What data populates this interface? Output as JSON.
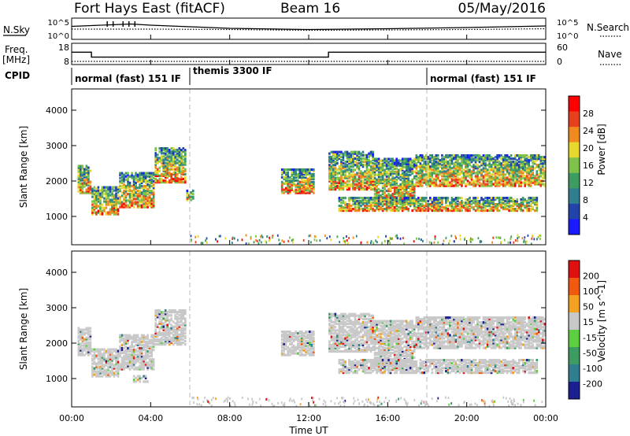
{
  "header": {
    "title": "Fort Hays East (fitACF)",
    "beam": "Beam 16",
    "date": "05/May/2016"
  },
  "noise_panel": {
    "left_label": "N.Sky",
    "left_ticks": [
      "10^5",
      "10^0"
    ],
    "right_ticks": [
      "10^5",
      "10^0"
    ],
    "right_label": "N.Search"
  },
  "freq_panel": {
    "left_label_line1": "Freq.",
    "left_label_line2": "[MHz]",
    "left_ticks": [
      "18",
      "8"
    ],
    "right_ticks": [
      "60",
      "0"
    ],
    "right_label": "Nave"
  },
  "cpid": {
    "label": "CPID",
    "modes": [
      {
        "text": "normal (fast) 151 IF",
        "start_hour": 0
      },
      {
        "text": "themis 3300 IF",
        "start_hour": 6
      },
      {
        "text": "normal (fast) 151 IF",
        "start_hour": 18
      }
    ]
  },
  "x_axis": {
    "label": "Time UT",
    "ticks": [
      "00:00",
      "04:00",
      "08:00",
      "12:00",
      "16:00",
      "20:00",
      "00:00"
    ]
  },
  "colors": {
    "power_scale": [
      "#1a1aff",
      "#2244aa",
      "#2f7f90",
      "#3c9c62",
      "#7fc24a",
      "#e8d82e",
      "#f08a1e",
      "#e8401c",
      "#ff0000"
    ],
    "velocity_scale": [
      "#e01010",
      "#f05a10",
      "#f4a020",
      "#c8c8c8",
      "#5cd040",
      "#3c9c62",
      "#2f7f90",
      "#1a2090"
    ],
    "ground_scatter": "#c8c8c8"
  },
  "chart_data": [
    {
      "type": "line",
      "panel": "noise",
      "x_range_hours": [
        0,
        24
      ],
      "series": [
        {
          "name": "N.Sky",
          "x": [
            0,
            1,
            2,
            3,
            4,
            6,
            8,
            12,
            16,
            20,
            24
          ],
          "y_log10": [
            3.3,
            3.5,
            3.7,
            3.9,
            3.6,
            3.2,
            2.8,
            2.5,
            2.7,
            3.0,
            3.4
          ]
        },
        {
          "name": "N.Search",
          "x": [
            0,
            4,
            8,
            12,
            16,
            20,
            24
          ],
          "y_log10": [
            2.6,
            2.6,
            2.5,
            2.3,
            2.4,
            2.5,
            2.7
          ]
        }
      ]
    },
    {
      "type": "line",
      "panel": "freq",
      "x_range_hours": [
        0,
        24
      ],
      "series": [
        {
          "name": "Freq.",
          "x": [
            0,
            1,
            1,
            13,
            13,
            24
          ],
          "y": [
            14.5,
            14.5,
            11,
            11,
            14.5,
            14.5
          ]
        },
        {
          "name": "Nave",
          "x": [
            0,
            1,
            1,
            24
          ],
          "y": [
            8,
            8,
            8,
            8
          ]
        }
      ]
    },
    {
      "type": "heatmap",
      "panel": "power",
      "title": "Power",
      "ylabel": "Slant Range [km]",
      "xlabel": "Time UT",
      "colorbar_label": "Power [dB]",
      "colorbar_ticks": [
        "4",
        "8",
        "12",
        "16",
        "20",
        "24",
        "28"
      ],
      "ylim": [
        200,
        4600
      ],
      "yticks": [
        "1000",
        "2000",
        "3000",
        "4000"
      ],
      "regions": [
        {
          "t0": 0.3,
          "t1": 1.0,
          "r0": 1700,
          "r1": 2500
        },
        {
          "t0": 1.0,
          "t1": 2.4,
          "r0": 1100,
          "r1": 1900
        },
        {
          "t0": 2.4,
          "t1": 4.2,
          "r0": 1300,
          "r1": 2300
        },
        {
          "t0": 4.2,
          "t1": 5.8,
          "r0": 2000,
          "r1": 3000
        },
        {
          "t0": 5.8,
          "t1": 6.2,
          "r0": 1500,
          "r1": 1800
        },
        {
          "t0": 10.6,
          "t1": 12.3,
          "r0": 1700,
          "r1": 2400
        },
        {
          "t0": 13.0,
          "t1": 15.3,
          "r0": 1800,
          "r1": 2900
        },
        {
          "t0": 15.3,
          "t1": 17.4,
          "r0": 1400,
          "r1": 2700
        },
        {
          "t0": 17.4,
          "t1": 24.0,
          "r0": 1900,
          "r1": 2800
        },
        {
          "t0": 13.5,
          "t1": 23.6,
          "r0": 1200,
          "r1": 1600
        }
      ]
    },
    {
      "type": "heatmap",
      "panel": "velocity",
      "title": "Velocity",
      "ylabel": "Slant Range [km]",
      "xlabel": "Time UT",
      "colorbar_label": "Velocity [m s^-1]",
      "colorbar_ticks": [
        "200",
        "100",
        "50",
        "15",
        "-15",
        "-50",
        "-100",
        "-200"
      ],
      "ylim": [
        200,
        4600
      ],
      "yticks": [
        "1000",
        "2000",
        "3000",
        "4000"
      ],
      "regions": [
        {
          "t0": 0.3,
          "t1": 1.0,
          "r0": 1700,
          "r1": 2500
        },
        {
          "t0": 1.0,
          "t1": 2.4,
          "r0": 1100,
          "r1": 1900
        },
        {
          "t0": 2.4,
          "t1": 4.2,
          "r0": 1300,
          "r1": 2300
        },
        {
          "t0": 4.2,
          "t1": 5.8,
          "r0": 2000,
          "r1": 3000
        },
        {
          "t0": 3.1,
          "t1": 3.9,
          "r0": 950,
          "r1": 1150
        },
        {
          "t0": 10.6,
          "t1": 12.3,
          "r0": 1700,
          "r1": 2400
        },
        {
          "t0": 13.0,
          "t1": 15.3,
          "r0": 1800,
          "r1": 2900
        },
        {
          "t0": 15.3,
          "t1": 17.4,
          "r0": 1400,
          "r1": 2700
        },
        {
          "t0": 17.4,
          "t1": 24.0,
          "r0": 1900,
          "r1": 2800
        },
        {
          "t0": 13.5,
          "t1": 23.6,
          "r0": 1200,
          "r1": 1600
        }
      ]
    }
  ]
}
